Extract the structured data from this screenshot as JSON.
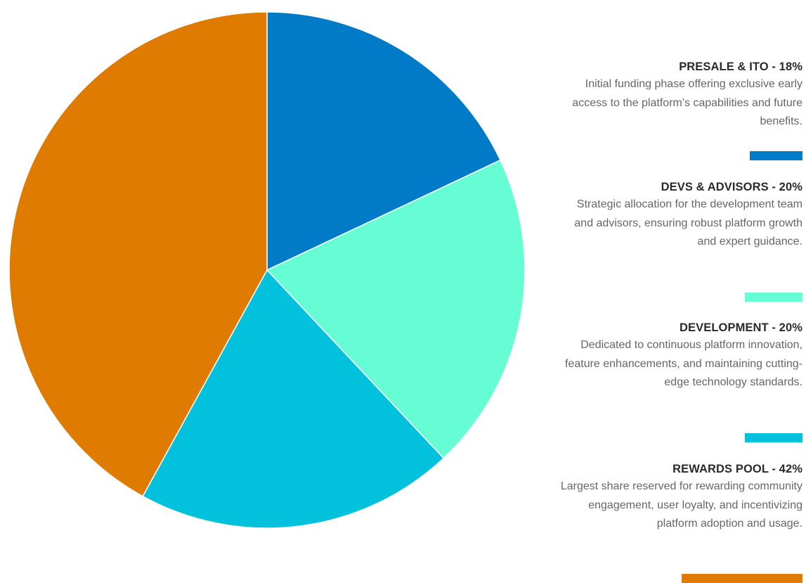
{
  "chart_data": {
    "type": "pie",
    "slices": [
      {
        "label": "PRESALE & ITO - 18%",
        "value": 18,
        "color": "#017bc8",
        "description": "Initial funding phase offering exclusive early access to the platform's capabilities and future benefits."
      },
      {
        "label": "DEVS & ADVISORS - 20%",
        "value": 20,
        "color": "#66fcd4",
        "description": "Strategic allocation for the development team and advisors, ensuring robust platform growth and expert guidance."
      },
      {
        "label": "DEVELOPMENT - 20%",
        "value": 20,
        "color": "#01c1dd",
        "description": "Dedicated to continuous platform innovation, feature enhancements, and maintaining cutting-edge technology standards."
      },
      {
        "label": "REWARDS POOL - 42%",
        "value": 42,
        "color": "#df7b00",
        "description": "Largest share reserved for rewarding community engagement, user loyalty, and incentivizing platform adoption and usage."
      }
    ]
  }
}
